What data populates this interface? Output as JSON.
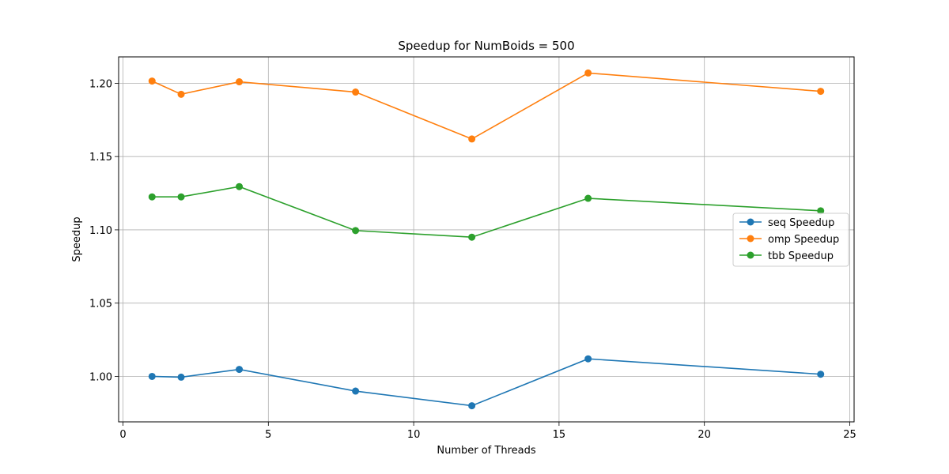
{
  "chart_data": {
    "type": "line",
    "title": "Speedup for NumBoids = 500",
    "xlabel": "Number of Threads",
    "ylabel": "Speedup",
    "xlim": [
      -0.15,
      25.15
    ],
    "ylim": [
      0.969,
      1.218
    ],
    "x_ticks": [
      0,
      5,
      10,
      15,
      20,
      25
    ],
    "x_tick_labels": [
      "0",
      "5",
      "10",
      "15",
      "20",
      "25"
    ],
    "y_ticks": [
      1.0,
      1.05,
      1.1,
      1.15,
      1.2
    ],
    "y_tick_labels": [
      "1.00",
      "1.05",
      "1.10",
      "1.15",
      "1.20"
    ],
    "grid": true,
    "legend_position": "center-right",
    "x": [
      1,
      2,
      4,
      8,
      12,
      16,
      24
    ],
    "series": [
      {
        "name": "seq Speedup",
        "color": "#1f77b4",
        "marker": "circle",
        "values": [
          1.0,
          0.9995,
          1.0048,
          0.99,
          0.98,
          1.012,
          1.0015
        ]
      },
      {
        "name": "omp Speedup",
        "color": "#ff7f0e",
        "marker": "circle",
        "values": [
          1.2015,
          1.1925,
          1.201,
          1.194,
          1.162,
          1.207,
          1.1945
        ]
      },
      {
        "name": "tbb Speedup",
        "color": "#2ca02c",
        "marker": "circle",
        "values": [
          1.1225,
          1.1225,
          1.1295,
          1.0995,
          1.095,
          1.1215,
          1.113
        ]
      }
    ]
  }
}
